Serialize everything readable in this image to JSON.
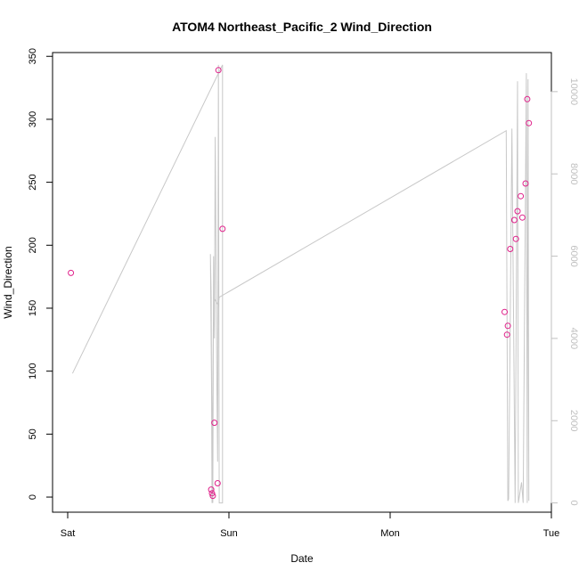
{
  "chart_data": {
    "type": "scatter",
    "title": "ATOM4 Northeast_Pacific_2 Wind_Direction",
    "xlabel": "Date",
    "ylabel": "Wind_Direction",
    "x_ticks": [
      "Sat",
      "Sun",
      "Mon",
      "Tue"
    ],
    "xlim_days": [
      0,
      3
    ],
    "y_left": {
      "ticks": [
        0,
        50,
        100,
        150,
        200,
        250,
        300,
        350
      ],
      "ylim": [
        -12,
        353
      ]
    },
    "y_right": {
      "ticks": [
        0,
        2000,
        4000,
        6000,
        8000,
        10000
      ],
      "ylim": [
        -225,
        10950
      ],
      "color": "#c0c0c0"
    },
    "grid": false,
    "series": [
      {
        "kind": "points",
        "axis": "left",
        "marker": "open-circle",
        "color": "#e0208a",
        "points": [
          {
            "x": 0.02,
            "y": 178
          },
          {
            "x": 0.89,
            "y": 6
          },
          {
            "x": 0.895,
            "y": 3
          },
          {
            "x": 0.9,
            "y": 1
          },
          {
            "x": 0.91,
            "y": 59
          },
          {
            "x": 0.93,
            "y": 11
          },
          {
            "x": 0.935,
            "y": 339
          },
          {
            "x": 0.96,
            "y": 213
          },
          {
            "x": 2.71,
            "y": 147
          },
          {
            "x": 2.725,
            "y": 129
          },
          {
            "x": 2.73,
            "y": 136
          },
          {
            "x": 2.745,
            "y": 197
          },
          {
            "x": 2.77,
            "y": 220
          },
          {
            "x": 2.78,
            "y": 205
          },
          {
            "x": 2.79,
            "y": 227
          },
          {
            "x": 2.81,
            "y": 239
          },
          {
            "x": 2.82,
            "y": 222
          },
          {
            "x": 2.84,
            "y": 249
          },
          {
            "x": 2.85,
            "y": 316
          },
          {
            "x": 2.86,
            "y": 297
          }
        ]
      },
      {
        "kind": "line",
        "axis": "right",
        "color": "#c8c8c8",
        "points": [
          {
            "x": 0.03,
            "y": 3150
          },
          {
            "x": 0.96,
            "y": 10650
          },
          {
            "x": 0.96,
            "y": 0
          },
          {
            "x": 0.94,
            "y": 0
          },
          {
            "x": 0.935,
            "y": 10650
          },
          {
            "x": 0.93,
            "y": 1000
          },
          {
            "x": 0.925,
            "y": 3000
          },
          {
            "x": 0.92,
            "y": 6000
          },
          {
            "x": 0.915,
            "y": 8900
          },
          {
            "x": 0.91,
            "y": 4000
          },
          {
            "x": 0.905,
            "y": 6000
          },
          {
            "x": 0.9,
            "y": 0
          },
          {
            "x": 0.895,
            "y": 1500
          },
          {
            "x": 0.885,
            "y": 6050
          },
          {
            "x": 0.89,
            "y": 5000
          },
          {
            "x": 0.895,
            "y": 0
          },
          {
            "x": 0.9,
            "y": 3000
          },
          {
            "x": 0.905,
            "y": 5000
          },
          {
            "x": 0.935,
            "y": 4800
          },
          {
            "x": 0.94,
            "y": 5000
          },
          {
            "x": 2.72,
            "y": 9050
          },
          {
            "x": 2.73,
            "y": 50
          },
          {
            "x": 2.735,
            "y": 100
          },
          {
            "x": 2.755,
            "y": 9100
          },
          {
            "x": 2.775,
            "y": 0
          },
          {
            "x": 2.79,
            "y": 10250
          },
          {
            "x": 2.795,
            "y": 0
          },
          {
            "x": 2.815,
            "y": 500
          },
          {
            "x": 2.825,
            "y": 0
          },
          {
            "x": 2.845,
            "y": 10450
          },
          {
            "x": 2.85,
            "y": 0
          },
          {
            "x": 2.855,
            "y": 10300
          },
          {
            "x": 2.86,
            "y": 50
          }
        ]
      }
    ]
  }
}
